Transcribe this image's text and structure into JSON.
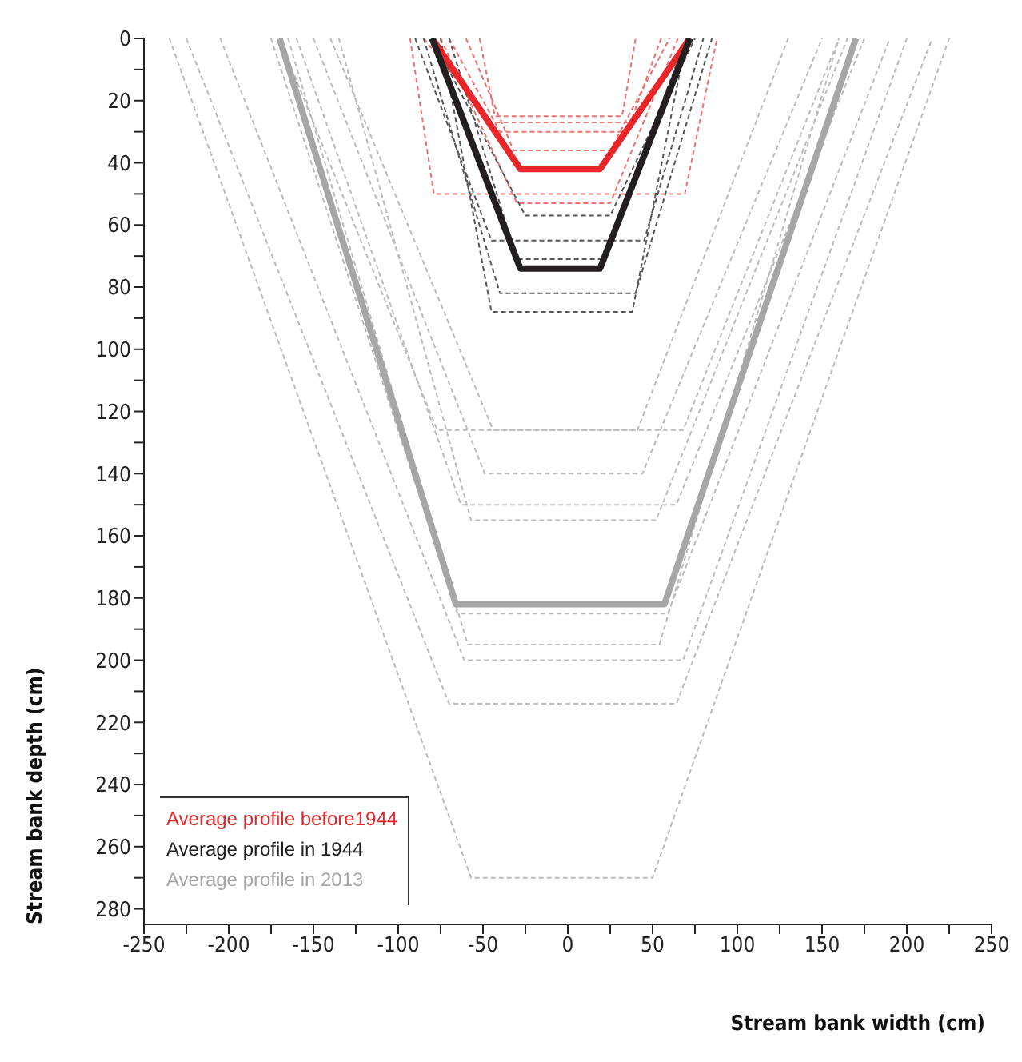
{
  "chart_data": {
    "type": "line",
    "xlabel": "Stream bank width (cm)",
    "ylabel": "Stream bank depth (cm)",
    "xlim": [
      -250,
      250
    ],
    "ylim": [
      285,
      0
    ],
    "xticks": [
      -250,
      {
        "value": -225,
        "label": null
      },
      -200,
      {
        "value": -175,
        "label": null
      },
      -150,
      {
        "value": -125,
        "label": null
      },
      -100,
      {
        "value": -75,
        "label": null
      },
      -50,
      {
        "value": -25,
        "label": null
      },
      0,
      {
        "value": 25,
        "label": null
      },
      50,
      {
        "value": 75,
        "label": null
      },
      100,
      {
        "value": 125,
        "label": null
      },
      150,
      {
        "value": 175,
        "label": null
      },
      200,
      {
        "value": 225,
        "label": null
      },
      250
    ],
    "yticks": [
      0,
      {
        "value": 10,
        "label": null
      },
      20,
      {
        "value": 30,
        "label": null
      },
      40,
      {
        "value": 50,
        "label": null
      },
      60,
      {
        "value": 70,
        "label": null
      },
      80,
      {
        "value": 90,
        "label": null
      },
      100,
      {
        "value": 110,
        "label": null
      },
      120,
      {
        "value": 130,
        "label": null
      },
      140,
      {
        "value": 150,
        "label": null
      },
      160,
      {
        "value": 170,
        "label": null
      },
      180,
      {
        "value": 190,
        "label": null
      },
      200,
      {
        "value": 210,
        "label": null
      },
      220,
      {
        "value": 230,
        "label": null
      },
      240,
      {
        "value": 250,
        "label": null
      },
      260,
      {
        "value": 270,
        "label": null
      },
      280
    ],
    "grid": false,
    "legend": "bottom left",
    "marker": "none",
    "series": [
      {
        "color": "#f07070",
        "line_style": "dashed",
        "x": [
          -93,
          -79,
          69,
          88
        ],
        "values": [
          0,
          50,
          50,
          0
        ]
      },
      {
        "color": "#f07070",
        "line_style": "dashed",
        "x": [
          -52,
          -43,
          32,
          40
        ],
        "values": [
          0,
          25,
          25,
          0
        ]
      },
      {
        "color": "#f07070",
        "line_style": "dashed",
        "x": [
          -70,
          -40,
          35,
          55
        ],
        "values": [
          0,
          30,
          30,
          0
        ]
      },
      {
        "color": "#f07070",
        "line_style": "dashed",
        "x": [
          -60,
          -32,
          25,
          60
        ],
        "values": [
          0,
          36,
          36,
          0
        ]
      },
      {
        "color": "#f07070",
        "line_style": "dashed",
        "x": [
          -75,
          -30,
          25,
          65
        ],
        "values": [
          0,
          53,
          53,
          0
        ]
      },
      {
        "color": "#f07070",
        "line_style": "dashed",
        "x": [
          -85,
          -45,
          38,
          70
        ],
        "values": [
          0,
          27,
          27,
          0
        ]
      },
      {
        "color": "#555555",
        "line_style": "dashed",
        "x": [
          -80,
          -25,
          25,
          75
        ],
        "values": [
          0,
          57,
          57,
          0
        ]
      },
      {
        "color": "#555555",
        "line_style": "dashed",
        "x": [
          -90,
          -45,
          45,
          80
        ],
        "values": [
          0,
          65,
          65,
          0
        ]
      },
      {
        "color": "#555555",
        "line_style": "dashed",
        "x": [
          -70,
          -30,
          20,
          70
        ],
        "values": [
          0,
          71,
          71,
          0
        ]
      },
      {
        "color": "#555555",
        "line_style": "dashed",
        "x": [
          -85,
          -40,
          40,
          85
        ],
        "values": [
          0,
          82,
          82,
          0
        ]
      },
      {
        "color": "#555555",
        "line_style": "dashed",
        "x": [
          -75,
          -45,
          38,
          70
        ],
        "values": [
          0,
          88,
          88,
          0
        ]
      },
      {
        "color": "#bbbbbb",
        "line_style": "dashed",
        "x": [
          -140,
          -44,
          41,
          130
        ],
        "values": [
          0,
          126,
          126,
          0
        ]
      },
      {
        "color": "#bbbbbb",
        "line_style": "dashed",
        "x": [
          -170,
          -77,
          68,
          160
        ],
        "values": [
          0,
          126,
          126,
          0
        ]
      },
      {
        "color": "#bbbbbb",
        "line_style": "dashed",
        "x": [
          -150,
          -49,
          44,
          150
        ],
        "values": [
          0,
          140,
          140,
          0
        ]
      },
      {
        "color": "#bbbbbb",
        "line_style": "dashed",
        "x": [
          -160,
          -63,
          64,
          175
        ],
        "values": [
          0,
          150,
          150,
          0
        ]
      },
      {
        "color": "#bbbbbb",
        "line_style": "dashed",
        "x": [
          -135,
          -57,
          52,
          165
        ],
        "values": [
          0,
          155,
          155,
          0
        ]
      },
      {
        "color": "#bbbbbb",
        "line_style": "dashed",
        "x": [
          -175,
          -65,
          59,
          190
        ],
        "values": [
          0,
          185,
          185,
          0
        ]
      },
      {
        "color": "#bbbbbb",
        "line_style": "dashed",
        "x": [
          -165,
          -59,
          54,
          160
        ],
        "values": [
          0,
          195,
          195,
          0
        ]
      },
      {
        "color": "#bbbbbb",
        "line_style": "dashed",
        "x": [
          -205,
          -61,
          68,
          200
        ],
        "values": [
          0,
          200,
          200,
          0
        ]
      },
      {
        "color": "#bbbbbb",
        "line_style": "dashed",
        "x": [
          -225,
          -70,
          64,
          215
        ],
        "values": [
          0,
          214,
          214,
          0
        ]
      },
      {
        "color": "#bbbbbb",
        "line_style": "dashed",
        "x": [
          -235,
          -57,
          50,
          225
        ],
        "values": [
          0,
          270,
          270,
          0
        ]
      },
      {
        "name": "Average profile before1944",
        "color": "#e8262a",
        "line_style": "solid",
        "x": [
          -80,
          -28,
          19,
          72
        ],
        "values": [
          0,
          42,
          42,
          0
        ]
      },
      {
        "name": "Average profile in 1944",
        "color": "#231f20",
        "line_style": "solid",
        "x": [
          -80,
          -28,
          19,
          72
        ],
        "values": [
          0,
          74,
          74,
          0
        ]
      },
      {
        "name": "Average profile in 2013",
        "color": "#a6a6a6",
        "line_style": "solid",
        "x": [
          -170,
          -66,
          57,
          170
        ],
        "values": [
          0,
          182,
          182,
          0
        ]
      }
    ]
  }
}
